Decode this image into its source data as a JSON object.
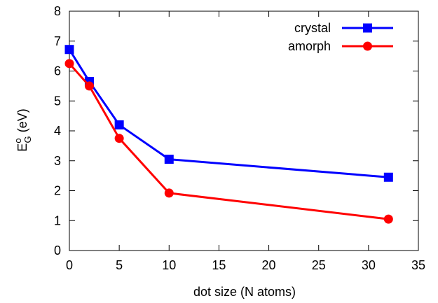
{
  "chart_data": {
    "type": "line",
    "xlabel": "dot size (N atoms)",
    "ylabel": {
      "base": "E",
      "superscript": "o",
      "subscript": "G",
      "suffix": " (eV)"
    },
    "xlim": [
      0,
      35
    ],
    "ylim": [
      0,
      8
    ],
    "xticks": [
      0,
      5,
      10,
      15,
      20,
      25,
      30,
      35
    ],
    "yticks": [
      0,
      1,
      2,
      3,
      4,
      5,
      6,
      7,
      8
    ],
    "grid": false,
    "legend_position": "top-right",
    "series": [
      {
        "name": "crystal",
        "color": "#0000ff",
        "marker": "square",
        "x": [
          0,
          2,
          5,
          10,
          32
        ],
        "y": [
          6.72,
          5.65,
          4.2,
          3.05,
          2.45
        ]
      },
      {
        "name": "amorph",
        "color": "#ff0000",
        "marker": "circle",
        "x": [
          0,
          2,
          5,
          10,
          32
        ],
        "y": [
          6.25,
          5.5,
          3.75,
          1.92,
          1.05
        ]
      }
    ]
  }
}
